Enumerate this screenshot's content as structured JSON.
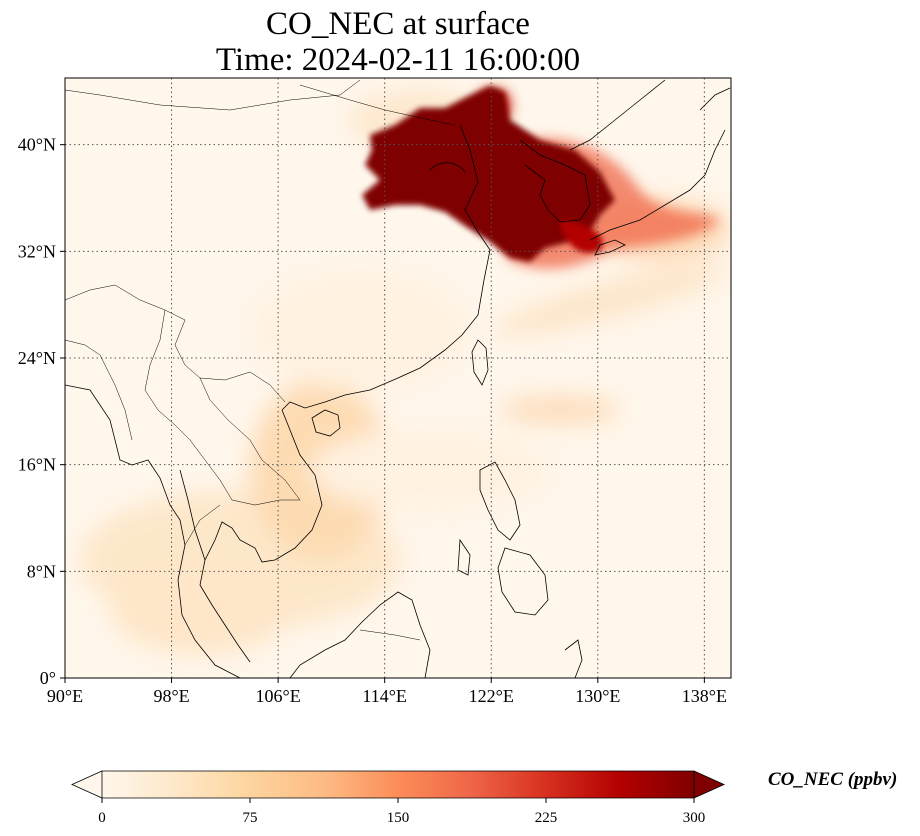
{
  "title": {
    "line1": "CO_NEC at surface",
    "line2": "Time: 2024-02-11 16:00:00"
  },
  "map": {
    "lon_range": [
      90,
      140
    ],
    "lat_range": [
      0,
      45
    ],
    "lon_ticks": [
      90,
      98,
      106,
      114,
      122,
      130,
      138
    ],
    "lat_ticks": [
      0,
      8,
      16,
      24,
      32,
      40
    ],
    "lon_tick_labels": [
      "90°E",
      "98°E",
      "106°E",
      "114°E",
      "122°E",
      "130°E",
      "138°E"
    ],
    "lat_tick_labels": [
      "0°",
      "8°N",
      "16°N",
      "24°N",
      "32°N",
      "40°N"
    ],
    "gridlines": true
  },
  "colorbar": {
    "label": "CO_NEC (ppbv)",
    "range": [
      0,
      300
    ],
    "ticks": [
      "0",
      "75",
      "150",
      "225",
      "300"
    ],
    "colormap": "OrRd",
    "extend": "both"
  },
  "colors": {
    "low": "#fff7ec",
    "mid": "#fdbb84",
    "high": "#d7301f",
    "max": "#7f0000"
  }
}
